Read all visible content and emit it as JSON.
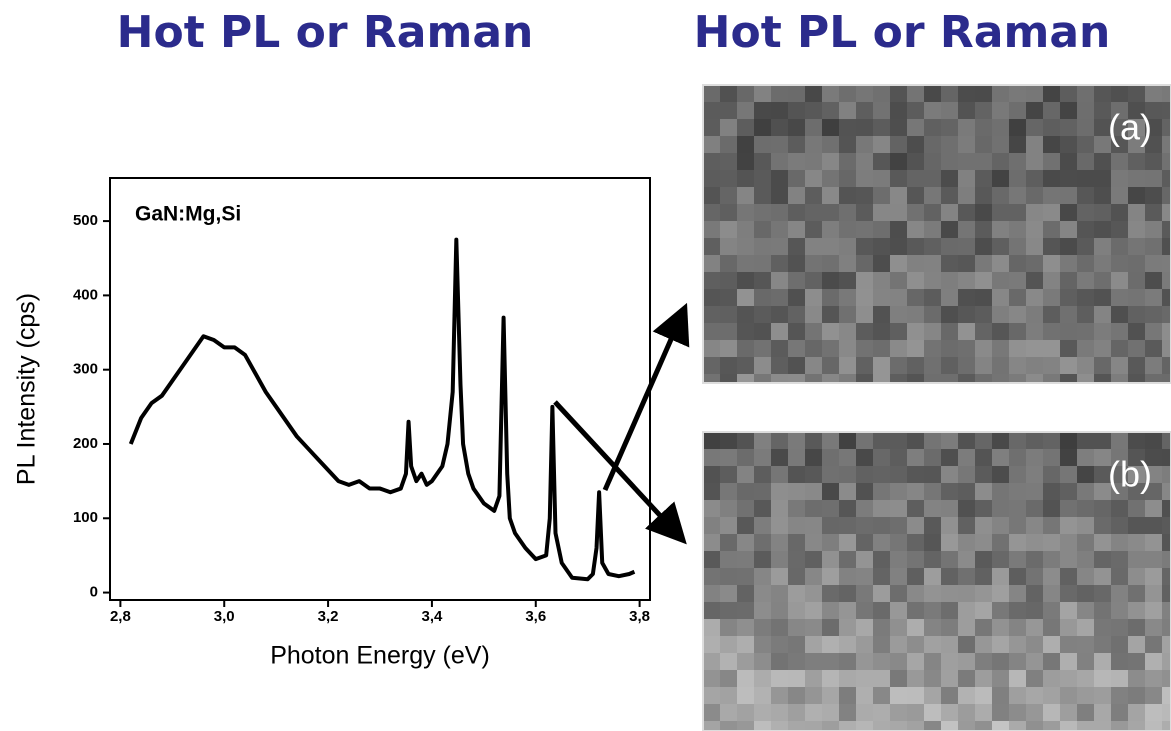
{
  "titles": [
    "Hot PL or Raman",
    "Hot PL or Raman"
  ],
  "chart_data": {
    "type": "line",
    "annotation": "GaN:Mg,Si",
    "x_label": "Photon Energy (eV)",
    "y_label": "PL Intensity (cps)",
    "color": "#000000",
    "x": [
      2.82,
      2.84,
      2.86,
      2.88,
      2.9,
      2.92,
      2.94,
      2.96,
      2.98,
      3.0,
      3.02,
      3.04,
      3.06,
      3.08,
      3.1,
      3.12,
      3.14,
      3.16,
      3.18,
      3.2,
      3.22,
      3.24,
      3.26,
      3.28,
      3.3,
      3.32,
      3.34,
      3.35,
      3.355,
      3.36,
      3.37,
      3.38,
      3.39,
      3.4,
      3.42,
      3.43,
      3.44,
      3.447,
      3.455,
      3.46,
      3.47,
      3.48,
      3.5,
      3.52,
      3.53,
      3.538,
      3.545,
      3.55,
      3.56,
      3.58,
      3.6,
      3.62,
      3.627,
      3.632,
      3.638,
      3.65,
      3.67,
      3.7,
      3.71,
      3.717,
      3.722,
      3.728,
      3.74,
      3.76,
      3.78,
      3.79
    ],
    "values": [
      200,
      235,
      255,
      265,
      285,
      305,
      325,
      345,
      340,
      330,
      330,
      320,
      295,
      270,
      250,
      230,
      210,
      195,
      180,
      165,
      150,
      145,
      150,
      140,
      140,
      135,
      140,
      160,
      230,
      170,
      150,
      160,
      145,
      150,
      170,
      200,
      270,
      475,
      280,
      200,
      160,
      140,
      120,
      110,
      130,
      370,
      160,
      100,
      80,
      60,
      45,
      50,
      100,
      250,
      80,
      40,
      20,
      18,
      25,
      60,
      135,
      40,
      25,
      22,
      25,
      28
    ],
    "xlim": [
      2.78,
      3.82
    ],
    "ylim": [
      -10,
      558
    ],
    "xticks": [
      {
        "value": 2.8,
        "label": "2,8"
      },
      {
        "value": 3.0,
        "label": "3,0"
      },
      {
        "value": 3.2,
        "label": "3,2"
      },
      {
        "value": 3.4,
        "label": "3,4"
      },
      {
        "value": 3.6,
        "label": "3,6"
      },
      {
        "value": 3.8,
        "label": "3,8"
      }
    ],
    "yticks": [
      0,
      100,
      200,
      300,
      400,
      500
    ]
  },
  "panels": [
    "(a)",
    "(b)"
  ]
}
